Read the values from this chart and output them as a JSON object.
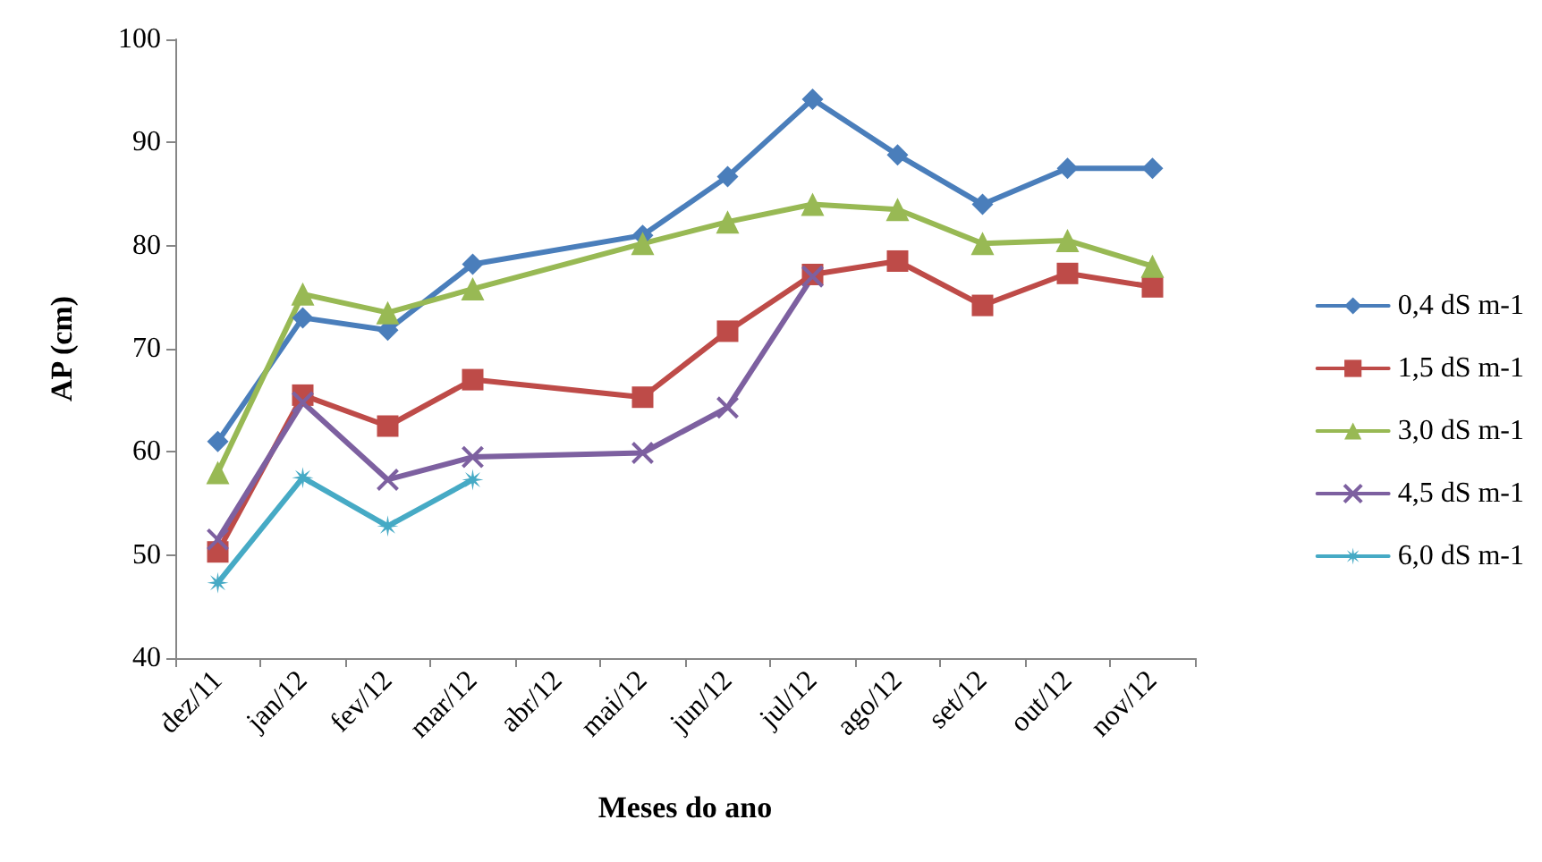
{
  "chart_data": {
    "type": "line",
    "xlabel": "Meses do ano",
    "ylabel": "AP (cm)",
    "categories": [
      "dez/11",
      "jan/12",
      "fev/12",
      "mar/12",
      "abr/12",
      "mai/12",
      "jun/12",
      "jul/12",
      "ago/12",
      "set/12",
      "out/12",
      "nov/12"
    ],
    "series": [
      {
        "name": "0,4 dS m-1",
        "color": "#4a7ebb",
        "marker": "diamond",
        "values": [
          61,
          73,
          71.8,
          78.2,
          null,
          81,
          86.7,
          94.2,
          88.8,
          84,
          87.5,
          87.5
        ]
      },
      {
        "name": "1,5 dS m-1",
        "color": "#be4b48",
        "marker": "square",
        "values": [
          50.3,
          65.5,
          62.5,
          67,
          null,
          65.3,
          71.7,
          77.2,
          78.5,
          74.2,
          77.3,
          76
        ]
      },
      {
        "name": "3,0 dS m-1",
        "color": "#98b954",
        "marker": "triangle",
        "values": [
          58,
          75.3,
          73.5,
          75.8,
          null,
          80.2,
          82.3,
          84,
          83.5,
          80.2,
          80.5,
          78
        ]
      },
      {
        "name": "4,5 dS m-1",
        "color": "#7d60a0",
        "marker": "cross",
        "values": [
          51.5,
          64.8,
          57.3,
          59.5,
          null,
          59.9,
          64.3,
          77,
          null,
          null,
          null,
          null
        ]
      },
      {
        "name": "6,0 dS m-1",
        "color": "#46aac5",
        "marker": "star",
        "values": [
          47.3,
          57.5,
          52.8,
          57.3,
          null,
          null,
          null,
          null,
          null,
          null,
          null,
          null
        ]
      }
    ],
    "ylim": [
      40,
      100
    ],
    "yticks": [
      40,
      50,
      60,
      70,
      80,
      90,
      100
    ],
    "grid": false,
    "legend": "right",
    "line_style": "solid"
  }
}
